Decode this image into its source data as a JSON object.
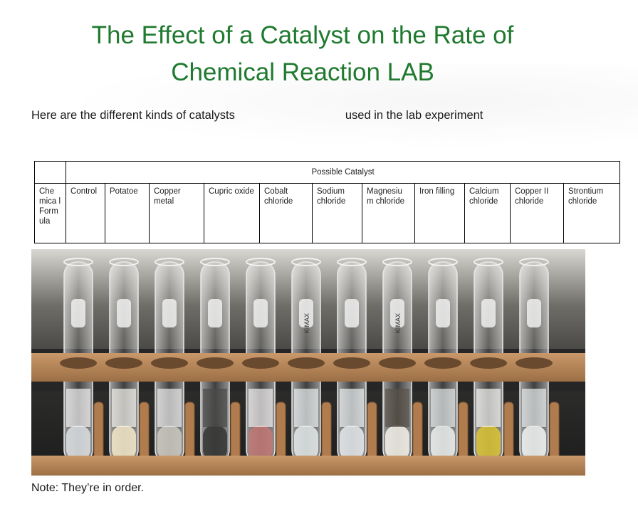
{
  "title_line1": "The Effect of a Catalyst on the Rate of",
  "title_line2": "Chemical Reaction LAB",
  "intro_left": "Here are the different kinds of catalysts",
  "intro_right": "used in the lab experiment",
  "table": {
    "header": "Possible Catalyst",
    "row_label": "Che mica l Form ula",
    "catalysts": [
      "Control",
      "Potatoe",
      "Copper metal",
      "Cupric oxide",
      "Cobalt chloride",
      "Sodium chloride",
      "Magnesiu m chloride",
      "Iron filling",
      "Calcium chloride",
      "Copper II chloride",
      "Strontium chloride"
    ]
  },
  "photo": {
    "tube_labels": [
      "KIMAX",
      "KIMAX"
    ],
    "liquid_colors": [
      "#d8dde0",
      "#efe6c8",
      "#c9c6be",
      "#3a3a38",
      "#c07a78",
      "#dfe4e6",
      "#e2e6e8",
      "#f0ede6",
      "#e8ebea",
      "#d8c23a",
      "#eef0f0"
    ],
    "foam_colors": [
      "#f4f4f4",
      "#f7f5ef",
      "#ececec",
      "#4a4a48",
      "#f2f0f0",
      "#eef2f4",
      "#eef2f4",
      "#5a5248",
      "#e6e9ea",
      "#f6f6f3",
      "#eaeef0"
    ]
  },
  "note": "Note: They’re in order.",
  "colors": {
    "title": "#1f7a2f",
    "wood": "#b8865a",
    "bench": "#2b2b2b"
  }
}
